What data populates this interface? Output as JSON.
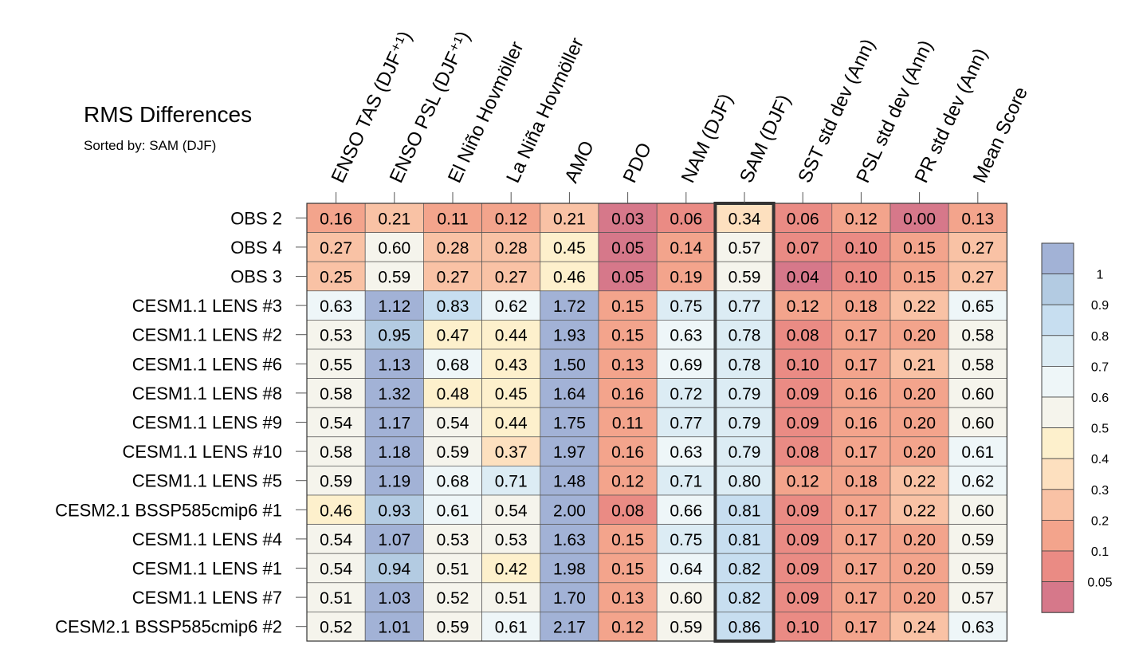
{
  "chart_data": {
    "type": "heatmap",
    "title": "RMS Differences",
    "subtitle": "Sorted by: SAM (DJF)",
    "highlighted_column": "SAM (DJF)",
    "columns": [
      "ENSO TAS (DJF⁺¹)",
      "ENSO PSL (DJF⁺¹)",
      "El Niño Hovmöller",
      "La Niña Hovmöller",
      "AMO",
      "PDO",
      "NAM (DJF)",
      "SAM (DJF)",
      "SST std dev (Ann)",
      "PSL std dev (Ann)",
      "PR std dev (Ann)",
      "Mean Score"
    ],
    "rows": [
      {
        "name": "OBS 2",
        "values": [
          0.16,
          0.21,
          0.11,
          0.12,
          0.21,
          0.03,
          0.06,
          0.34,
          0.06,
          0.12,
          0.0,
          0.13
        ]
      },
      {
        "name": "OBS 4",
        "values": [
          0.27,
          0.6,
          0.28,
          0.28,
          0.45,
          0.05,
          0.14,
          0.57,
          0.07,
          0.1,
          0.15,
          0.27
        ]
      },
      {
        "name": "OBS 3",
        "values": [
          0.25,
          0.59,
          0.27,
          0.27,
          0.46,
          0.05,
          0.19,
          0.59,
          0.04,
          0.1,
          0.15,
          0.27
        ]
      },
      {
        "name": "CESM1.1 LENS #3",
        "values": [
          0.63,
          1.12,
          0.83,
          0.62,
          1.72,
          0.15,
          0.75,
          0.77,
          0.12,
          0.18,
          0.22,
          0.65
        ]
      },
      {
        "name": "CESM1.1 LENS #2",
        "values": [
          0.53,
          0.95,
          0.47,
          0.44,
          1.93,
          0.15,
          0.63,
          0.78,
          0.08,
          0.17,
          0.2,
          0.58
        ]
      },
      {
        "name": "CESM1.1 LENS #6",
        "values": [
          0.55,
          1.13,
          0.68,
          0.43,
          1.5,
          0.13,
          0.69,
          0.78,
          0.1,
          0.17,
          0.21,
          0.58
        ]
      },
      {
        "name": "CESM1.1 LENS #8",
        "values": [
          0.58,
          1.32,
          0.48,
          0.45,
          1.64,
          0.16,
          0.72,
          0.79,
          0.09,
          0.16,
          0.2,
          0.6
        ]
      },
      {
        "name": "CESM1.1 LENS #9",
        "values": [
          0.54,
          1.17,
          0.54,
          0.44,
          1.75,
          0.11,
          0.77,
          0.79,
          0.09,
          0.16,
          0.2,
          0.6
        ]
      },
      {
        "name": "CESM1.1 LENS #10",
        "values": [
          0.58,
          1.18,
          0.59,
          0.37,
          1.97,
          0.16,
          0.63,
          0.79,
          0.08,
          0.17,
          0.2,
          0.61
        ]
      },
      {
        "name": "CESM1.1 LENS #5",
        "values": [
          0.59,
          1.19,
          0.68,
          0.71,
          1.48,
          0.12,
          0.71,
          0.8,
          0.12,
          0.18,
          0.22,
          0.62
        ]
      },
      {
        "name": "CESM2.1 BSSP585cmip6 #1",
        "values": [
          0.46,
          0.93,
          0.61,
          0.54,
          2.0,
          0.08,
          0.66,
          0.81,
          0.09,
          0.17,
          0.22,
          0.6
        ]
      },
      {
        "name": "CESM1.1 LENS #4",
        "values": [
          0.54,
          1.07,
          0.53,
          0.53,
          1.63,
          0.15,
          0.75,
          0.81,
          0.09,
          0.17,
          0.2,
          0.59
        ]
      },
      {
        "name": "CESM1.1 LENS #1",
        "values": [
          0.54,
          0.94,
          0.51,
          0.42,
          1.98,
          0.15,
          0.64,
          0.82,
          0.09,
          0.17,
          0.2,
          0.59
        ]
      },
      {
        "name": "CESM1.1 LENS #7",
        "values": [
          0.51,
          1.03,
          0.52,
          0.51,
          1.7,
          0.13,
          0.6,
          0.82,
          0.09,
          0.17,
          0.2,
          0.57
        ]
      },
      {
        "name": "CESM2.1 BSSP585cmip6 #2",
        "values": [
          0.52,
          1.01,
          0.59,
          0.61,
          2.17,
          0.12,
          0.59,
          0.86,
          0.1,
          0.17,
          0.24,
          0.63
        ]
      }
    ],
    "colorbar": {
      "boundaries": [
        "1",
        "0.9",
        "0.8",
        "0.7",
        "0.6",
        "0.5",
        "0.4",
        "0.3",
        "0.2",
        "0.1",
        "0.05"
      ],
      "thresholds": [
        1,
        0.9,
        0.8,
        0.7,
        0.6,
        0.5,
        0.4,
        0.3,
        0.2,
        0.1,
        0.05
      ],
      "colors": [
        "#a2b2d6",
        "#b3cbe2",
        "#c7def0",
        "#dcecf4",
        "#eef6f8",
        "#f5f4ec",
        "#fdf0cc",
        "#fde0bf",
        "#f9c2a5",
        "#f3a48c",
        "#ea8b84",
        "#d6788a"
      ]
    }
  }
}
